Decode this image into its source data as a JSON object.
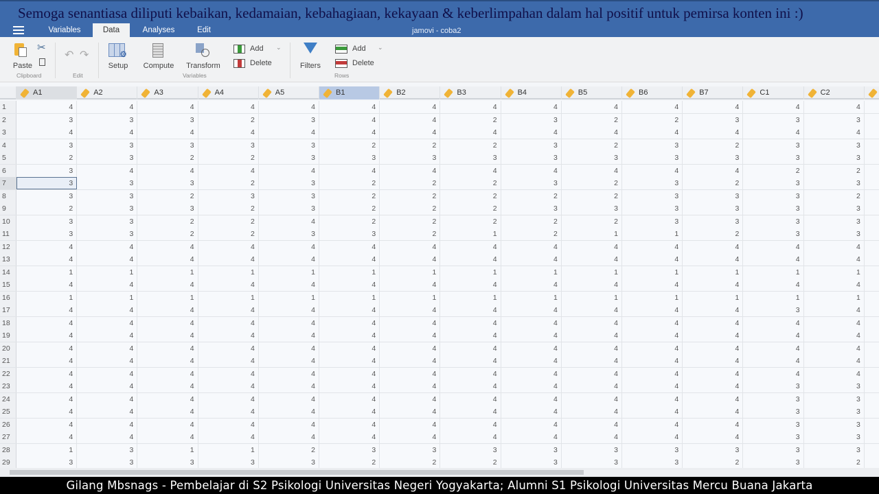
{
  "window_title": "jamovi - coba2",
  "banner": "Semoga senantiasa diliputi kebaikan, kedamaian, kebahagiaan, kekayaan & keberlimpahan dalam hal positif untuk pemirsa konten ini  :)",
  "tabs": [
    {
      "label": "Variables"
    },
    {
      "label": "Data",
      "active": true
    },
    {
      "label": "Analyses"
    },
    {
      "label": "Edit"
    }
  ],
  "ribbon": {
    "paste": "Paste",
    "clipboard_group": "Clipboard",
    "edit_group": "Edit",
    "setup": "Setup",
    "compute": "Compute",
    "transform": "Transform",
    "var_add": "Add",
    "var_delete": "Delete",
    "variables_group": "Variables",
    "filters": "Filters",
    "row_add": "Add",
    "row_delete": "Delete",
    "rows_group": "Rows"
  },
  "colors": {
    "header": "#3d6aab",
    "selected_column": "#b8c9e4",
    "measure_tag": "#f0b336"
  },
  "grid": {
    "columns": [
      "A1",
      "A2",
      "A3",
      "A4",
      "A5",
      "B1",
      "B2",
      "B3",
      "B4",
      "B5",
      "B6",
      "B7",
      "C1",
      "C2"
    ],
    "selected_column": "B1",
    "active_cell": {
      "row": 7,
      "column": "A1"
    },
    "rows": [
      [
        4,
        4,
        4,
        4,
        4,
        4,
        4,
        4,
        4,
        4,
        4,
        4,
        4,
        4
      ],
      [
        3,
        3,
        3,
        2,
        3,
        4,
        4,
        2,
        3,
        2,
        2,
        3,
        3,
        3
      ],
      [
        4,
        4,
        4,
        4,
        4,
        4,
        4,
        4,
        4,
        4,
        4,
        4,
        4,
        4
      ],
      [
        3,
        3,
        3,
        3,
        3,
        2,
        2,
        2,
        3,
        2,
        3,
        2,
        3,
        3
      ],
      [
        2,
        3,
        2,
        2,
        3,
        3,
        3,
        3,
        3,
        3,
        3,
        3,
        3,
        3
      ],
      [
        3,
        4,
        4,
        4,
        4,
        4,
        4,
        4,
        4,
        4,
        4,
        4,
        2,
        2
      ],
      [
        3,
        3,
        3,
        2,
        3,
        2,
        2,
        2,
        3,
        2,
        3,
        2,
        3,
        3
      ],
      [
        3,
        3,
        2,
        3,
        3,
        2,
        2,
        2,
        2,
        2,
        3,
        3,
        3,
        2
      ],
      [
        2,
        3,
        3,
        2,
        3,
        2,
        2,
        2,
        3,
        3,
        3,
        3,
        3,
        3
      ],
      [
        3,
        3,
        2,
        2,
        4,
        2,
        2,
        2,
        2,
        2,
        3,
        3,
        3,
        3
      ],
      [
        3,
        3,
        2,
        2,
        3,
        3,
        2,
        1,
        2,
        1,
        1,
        2,
        3,
        3
      ],
      [
        4,
        4,
        4,
        4,
        4,
        4,
        4,
        4,
        4,
        4,
        4,
        4,
        4,
        4
      ],
      [
        4,
        4,
        4,
        4,
        4,
        4,
        4,
        4,
        4,
        4,
        4,
        4,
        4,
        4
      ],
      [
        1,
        1,
        1,
        1,
        1,
        1,
        1,
        1,
        1,
        1,
        1,
        1,
        1,
        1
      ],
      [
        4,
        4,
        4,
        4,
        4,
        4,
        4,
        4,
        4,
        4,
        4,
        4,
        4,
        4
      ],
      [
        1,
        1,
        1,
        1,
        1,
        1,
        1,
        1,
        1,
        1,
        1,
        1,
        1,
        1
      ],
      [
        4,
        4,
        4,
        4,
        4,
        4,
        4,
        4,
        4,
        4,
        4,
        4,
        3,
        4
      ],
      [
        4,
        4,
        4,
        4,
        4,
        4,
        4,
        4,
        4,
        4,
        4,
        4,
        4,
        4
      ],
      [
        4,
        4,
        4,
        4,
        4,
        4,
        4,
        4,
        4,
        4,
        4,
        4,
        4,
        4
      ],
      [
        4,
        4,
        4,
        4,
        4,
        4,
        4,
        4,
        4,
        4,
        4,
        4,
        4,
        4
      ],
      [
        4,
        4,
        4,
        4,
        4,
        4,
        4,
        4,
        4,
        4,
        4,
        4,
        4,
        4
      ],
      [
        4,
        4,
        4,
        4,
        4,
        4,
        4,
        4,
        4,
        4,
        4,
        4,
        4,
        4
      ],
      [
        4,
        4,
        4,
        4,
        4,
        4,
        4,
        4,
        4,
        4,
        4,
        4,
        3,
        3
      ],
      [
        4,
        4,
        4,
        4,
        4,
        4,
        4,
        4,
        4,
        4,
        4,
        4,
        3,
        3
      ],
      [
        4,
        4,
        4,
        4,
        4,
        4,
        4,
        4,
        4,
        4,
        4,
        4,
        3,
        3
      ],
      [
        4,
        4,
        4,
        4,
        4,
        4,
        4,
        4,
        4,
        4,
        4,
        4,
        3,
        3
      ],
      [
        4,
        4,
        4,
        4,
        4,
        4,
        4,
        4,
        4,
        4,
        4,
        4,
        3,
        3
      ],
      [
        1,
        3,
        1,
        1,
        2,
        3,
        3,
        3,
        3,
        3,
        3,
        3,
        3,
        3
      ],
      [
        3,
        3,
        3,
        3,
        3,
        2,
        2,
        2,
        3,
        3,
        3,
        2,
        3,
        2
      ]
    ]
  },
  "footer": "Gilang Mbsnags - Pembelajar di S2 Psikologi Universitas Negeri Yogyakarta; Alumni S1 Psikologi Universitas Mercu Buana Jakarta"
}
